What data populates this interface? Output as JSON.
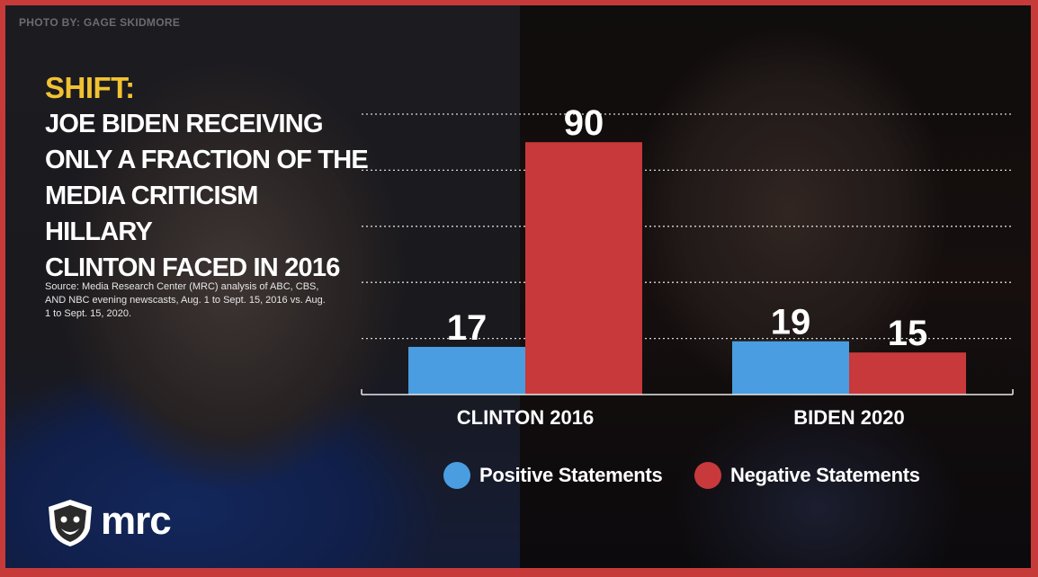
{
  "photo_credit": "PHOTO BY: GAGE SKIDMORE",
  "headline": {
    "kicker": "SHIFT:",
    "title": "JOE BIDEN RECEIVING\nONLY A FRACTION OF THE\nMEDIA CRITICISM HILLARY\nCLINTON FACED IN 2016"
  },
  "source": "Source: Media Research Center (MRC) analysis of ABC, CBS, AND NBC evening newscasts, Aug. 1 to Sept. 15, 2016 vs. Aug. 1 to Sept. 15, 2020.",
  "logo": {
    "text": "mrc",
    "icon": "bulldog-shield-icon"
  },
  "colors": {
    "positive": "#4a9de0",
    "negative": "#c8393b",
    "kicker": "#f1c232",
    "frame": "#c63a3a"
  },
  "chart_data": {
    "type": "bar",
    "categories": [
      "CLINTON 2016",
      "BIDEN 2020"
    ],
    "series": [
      {
        "name": "Positive Statements",
        "values": [
          17,
          19
        ],
        "color": "#4a9de0"
      },
      {
        "name": "Negative Statements",
        "values": [
          90,
          15
        ],
        "color": "#c8393b"
      }
    ],
    "ylim": [
      0,
      100
    ],
    "grid": true,
    "legend": "bottom"
  }
}
